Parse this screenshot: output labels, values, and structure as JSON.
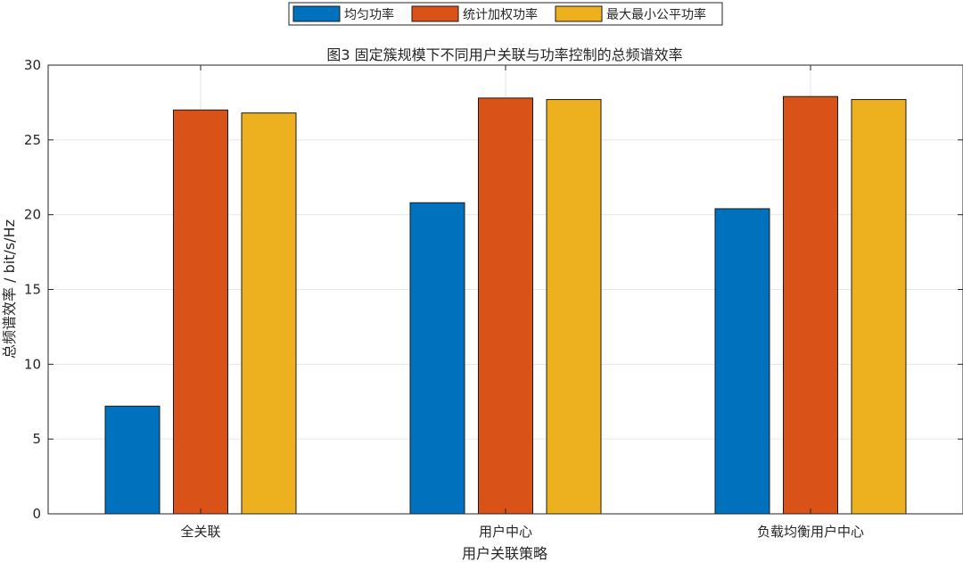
{
  "chart_data": {
    "type": "bar",
    "title": "图3 固定簇规模下不同用户关联与功率控制的总频谱效率",
    "xlabel": "用户关联策略",
    "ylabel": "总频谱效率 / bit/s/Hz",
    "categories": [
      "全关联",
      "用户中心",
      "负载均衡用户中心"
    ],
    "series": [
      {
        "name": "均匀功率",
        "color": "#0072BD",
        "values": [
          7.2,
          20.8,
          20.4
        ]
      },
      {
        "name": "统计加权功率",
        "color": "#D95319",
        "values": [
          27.0,
          27.8,
          27.9
        ]
      },
      {
        "name": "最大最小公平功率",
        "color": "#EDB120",
        "values": [
          26.8,
          27.7,
          27.7
        ]
      }
    ],
    "ylim": [
      0,
      30
    ],
    "yticks": [
      0,
      5,
      10,
      15,
      20,
      25,
      30
    ],
    "yticklabels": [
      "0",
      "5",
      "10",
      "15",
      "20",
      "25",
      "30"
    ],
    "grid": true,
    "legend_position": "top-center"
  }
}
